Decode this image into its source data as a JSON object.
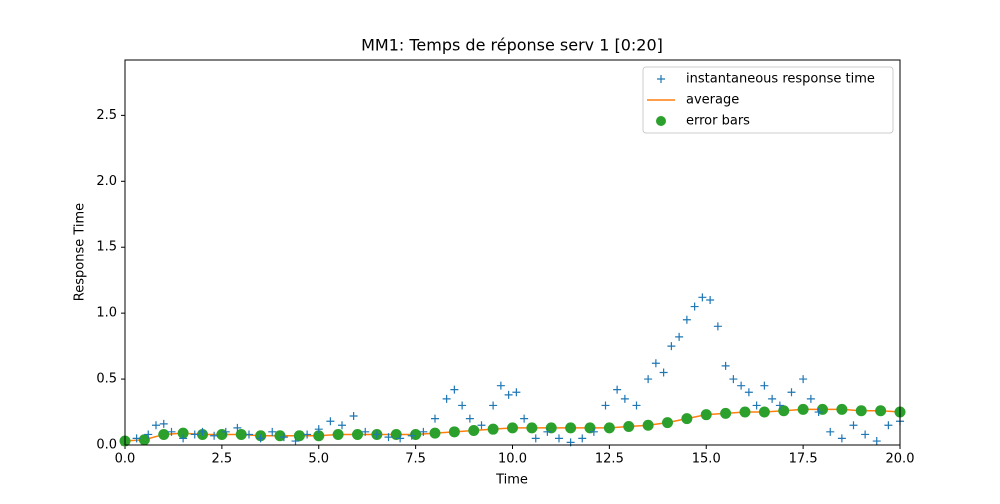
{
  "chart_data": {
    "type": "scatter",
    "title": "MM1: Temps de réponse serv 1 [0:20]",
    "x_label": "Time",
    "y_label": "Response Time",
    "xlim": [
      0,
      20
    ],
    "ylim": [
      0,
      2.92
    ],
    "xticks": [
      {
        "value": 0,
        "label": "0.0"
      },
      2.5,
      {
        "value": 5,
        "label": "5.0"
      },
      7.5,
      {
        "value": 10,
        "label": "10.0"
      },
      12.5,
      {
        "value": 15,
        "label": "15.0"
      },
      17.5,
      {
        "value": 20,
        "label": "20.0"
      }
    ],
    "yticks": [
      {
        "value": 0,
        "label": "0.0"
      },
      0.5,
      {
        "value": 1,
        "label": "1.0"
      },
      1.5,
      {
        "value": 2,
        "label": "2.0"
      },
      2.5
    ],
    "legend": "upper right",
    "series": [
      {
        "name": "instantaneous response time",
        "color": "#1f77b4",
        "marker": "+",
        "x": [
          0.3,
          0.6,
          0.8,
          1.0,
          1.2,
          1.5,
          1.8,
          2.0,
          2.3,
          2.6,
          2.9,
          3.2,
          3.5,
          3.8,
          4.1,
          4.4,
          4.7,
          5.0,
          5.3,
          5.6,
          5.9,
          6.2,
          6.5,
          6.8,
          7.1,
          7.4,
          7.7,
          8.0,
          8.3,
          8.5,
          8.7,
          8.9,
          9.2,
          9.5,
          9.7,
          9.9,
          10.1,
          10.3,
          10.6,
          10.9,
          11.2,
          11.5,
          11.8,
          12.1,
          12.4,
          12.7,
          12.9,
          13.2,
          13.5,
          13.7,
          13.9,
          14.1,
          14.3,
          14.5,
          14.7,
          14.9,
          15.1,
          15.3,
          15.5,
          15.7,
          15.9,
          16.1,
          16.3,
          16.5,
          16.7,
          16.9,
          17.2,
          17.5,
          17.7,
          17.9,
          18.2,
          18.5,
          18.8,
          19.1,
          19.4,
          19.7,
          20.0
        ],
        "values": [
          0.05,
          0.08,
          0.15,
          0.16,
          0.1,
          0.05,
          0.08,
          0.1,
          0.07,
          0.1,
          0.13,
          0.08,
          0.05,
          0.1,
          0.06,
          0.03,
          0.08,
          0.12,
          0.18,
          0.15,
          0.22,
          0.1,
          0.08,
          0.06,
          0.05,
          0.07,
          0.1,
          0.2,
          0.35,
          0.42,
          0.3,
          0.2,
          0.15,
          0.3,
          0.45,
          0.38,
          0.4,
          0.2,
          0.05,
          0.1,
          0.05,
          0.02,
          0.05,
          0.1,
          0.3,
          0.42,
          0.35,
          0.3,
          0.5,
          0.62,
          0.55,
          0.75,
          0.82,
          0.95,
          1.05,
          1.12,
          1.1,
          0.9,
          0.6,
          0.5,
          0.45,
          0.4,
          0.3,
          0.45,
          0.35,
          0.3,
          0.4,
          0.5,
          0.35,
          0.25,
          0.1,
          0.05,
          0.15,
          0.08,
          0.03,
          0.15,
          0.18
        ]
      },
      {
        "name": "average",
        "color": "#ff7f0e",
        "marker": "line",
        "x": [
          0,
          0.5,
          1,
          1.5,
          2,
          2.5,
          3,
          3.5,
          4,
          4.5,
          5,
          5.5,
          6,
          6.5,
          7,
          7.5,
          8,
          8.5,
          9,
          9.5,
          10,
          10.5,
          11,
          11.5,
          12,
          12.5,
          13,
          13.5,
          14,
          14.5,
          15,
          15.5,
          16,
          16.5,
          17,
          17.5,
          18,
          18.5,
          19,
          19.5,
          20
        ],
        "values": [
          0.03,
          0.04,
          0.08,
          0.09,
          0.08,
          0.08,
          0.08,
          0.07,
          0.07,
          0.07,
          0.07,
          0.08,
          0.08,
          0.08,
          0.08,
          0.08,
          0.09,
          0.1,
          0.11,
          0.12,
          0.13,
          0.13,
          0.13,
          0.13,
          0.13,
          0.13,
          0.14,
          0.15,
          0.17,
          0.2,
          0.23,
          0.24,
          0.25,
          0.25,
          0.26,
          0.27,
          0.27,
          0.27,
          0.26,
          0.26,
          0.25
        ]
      },
      {
        "name": "error bars",
        "color": "#2ca02c",
        "marker": "dot",
        "x": [
          0,
          0.5,
          1,
          1.5,
          2,
          2.5,
          3,
          3.5,
          4,
          4.5,
          5,
          5.5,
          6,
          6.5,
          7,
          7.5,
          8,
          8.5,
          9,
          9.5,
          10,
          10.5,
          11,
          11.5,
          12,
          12.5,
          13,
          13.5,
          14,
          14.5,
          15,
          15.5,
          16,
          16.5,
          17,
          17.5,
          18,
          18.5,
          19,
          19.5,
          20
        ],
        "values": [
          0.03,
          0.04,
          0.08,
          0.09,
          0.08,
          0.08,
          0.08,
          0.07,
          0.07,
          0.07,
          0.07,
          0.08,
          0.08,
          0.08,
          0.08,
          0.08,
          0.09,
          0.1,
          0.11,
          0.12,
          0.13,
          0.13,
          0.13,
          0.13,
          0.13,
          0.13,
          0.14,
          0.15,
          0.17,
          0.2,
          0.23,
          0.24,
          0.25,
          0.25,
          0.26,
          0.27,
          0.27,
          0.27,
          0.26,
          0.26,
          0.25
        ]
      }
    ]
  }
}
